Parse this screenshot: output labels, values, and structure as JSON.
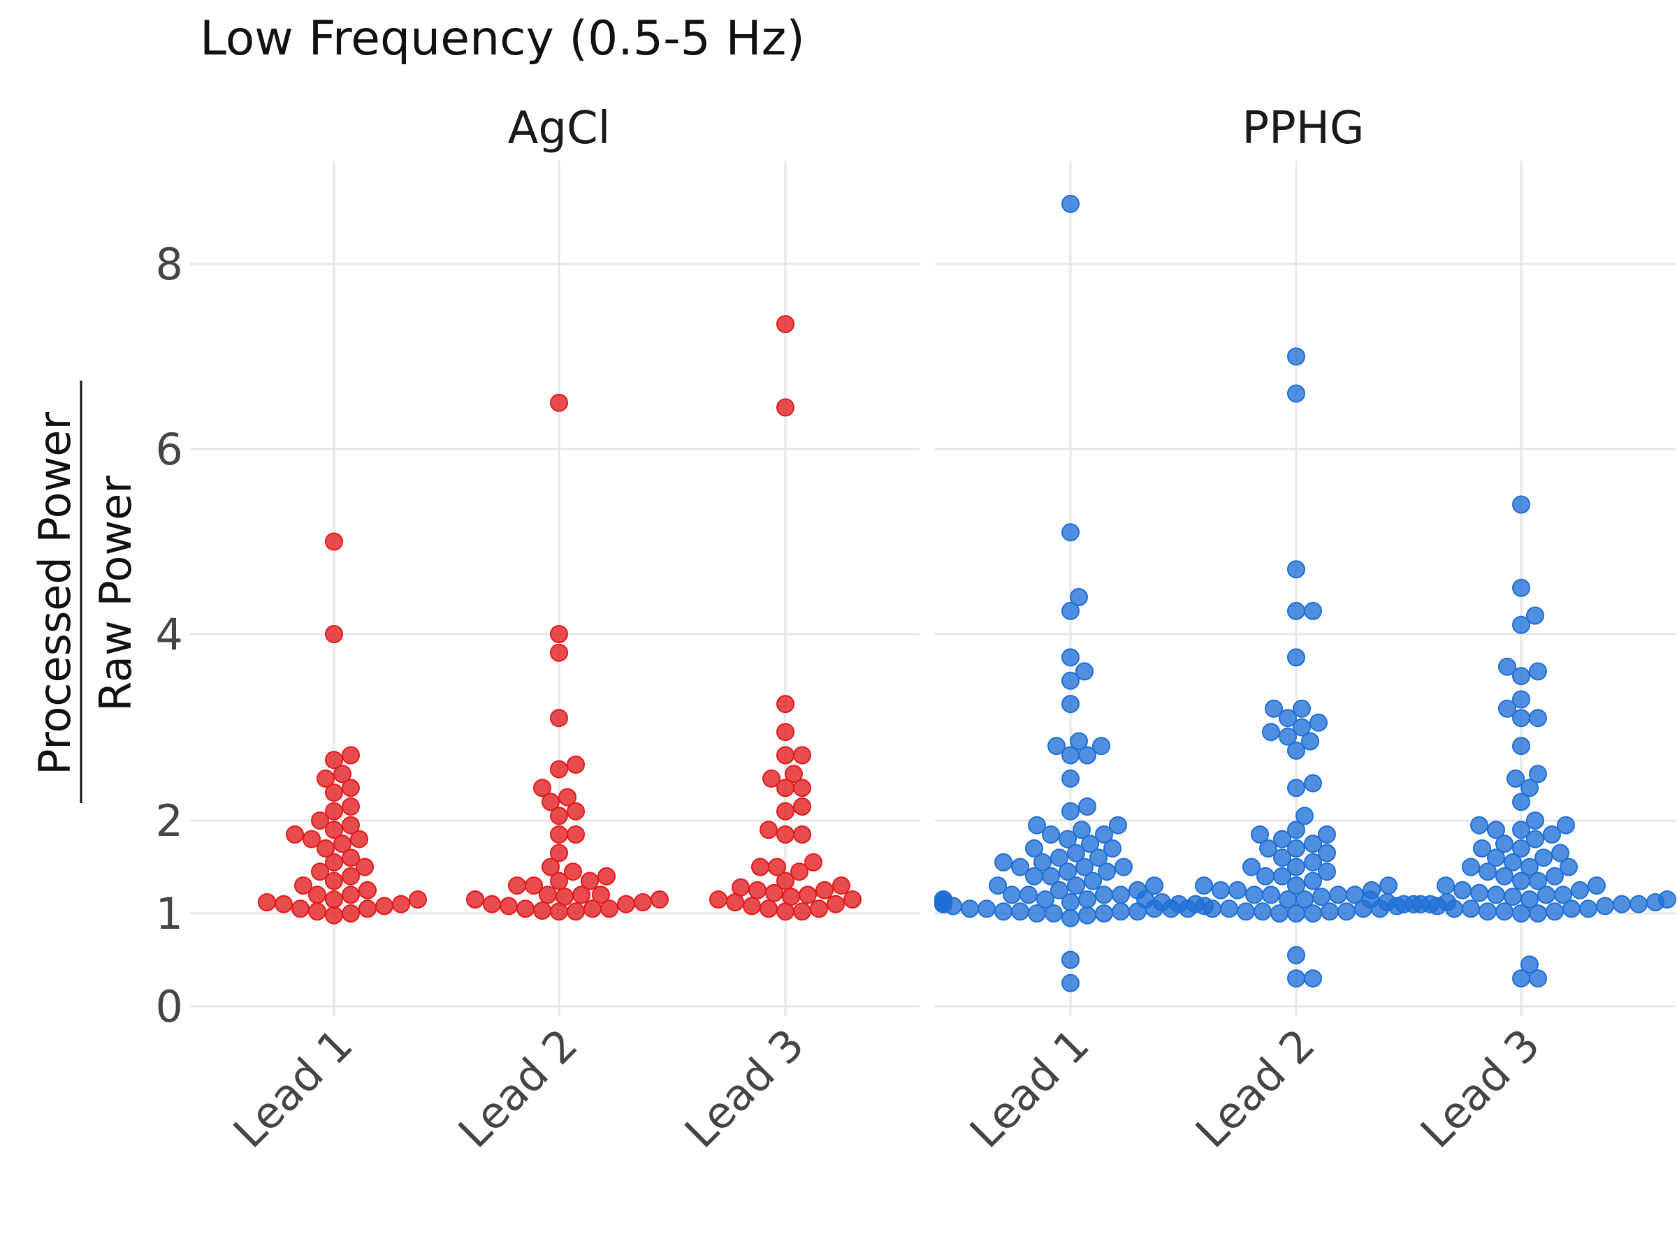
{
  "chart_data": {
    "type": "scatter",
    "subtype": "beeswarm",
    "title": "Low Frequency (0.5-5 Hz)",
    "ylabel_numerator": "Processed Power",
    "ylabel_denominator": "Raw Power",
    "xlabel": "",
    "y_ticks": [
      {
        "value": 0,
        "label": "0"
      },
      {
        "value": 1,
        "label": "1"
      },
      {
        "value": 2,
        "label": "2"
      },
      {
        "value": 4,
        "label": "4"
      },
      {
        "value": 6,
        "label": "6"
      },
      {
        "value": 8,
        "label": "8"
      }
    ],
    "ylim": [
      -0.05,
      8.5
    ],
    "grid": true,
    "categories": [
      "Lead 1",
      "Lead 2",
      "Lead 3"
    ],
    "panels": [
      {
        "name": "AgCl",
        "color": "#e31a1c",
        "series": [
          {
            "category": "Lead 1",
            "values": [
              5.0,
              4.0,
              2.7,
              2.65,
              2.5,
              2.45,
              2.35,
              2.3,
              2.15,
              2.1,
              2.0,
              1.95,
              1.9,
              1.85,
              1.8,
              1.8,
              1.75,
              1.7,
              1.6,
              1.55,
              1.5,
              1.45,
              1.4,
              1.35,
              1.3,
              1.25,
              1.2,
              1.2,
              1.15,
              1.15,
              1.12,
              1.1,
              1.1,
              1.08,
              1.05,
              1.05,
              1.02,
              1.0,
              0.98
            ]
          },
          {
            "category": "Lead 2",
            "values": [
              6.5,
              4.0,
              3.8,
              3.1,
              2.6,
              2.55,
              2.35,
              2.25,
              2.2,
              2.1,
              2.05,
              1.85,
              1.85,
              1.65,
              1.5,
              1.45,
              1.4,
              1.35,
              1.35,
              1.3,
              1.3,
              1.2,
              1.2,
              1.2,
              1.18,
              1.15,
              1.15,
              1.12,
              1.1,
              1.1,
              1.08,
              1.05,
              1.05,
              1.05,
              1.03,
              1.02,
              1.02
            ]
          },
          {
            "category": "Lead 3",
            "values": [
              7.35,
              6.45,
              3.25,
              2.95,
              2.7,
              2.7,
              2.5,
              2.45,
              2.35,
              2.35,
              2.15,
              2.1,
              1.9,
              1.85,
              1.85,
              1.55,
              1.5,
              1.5,
              1.45,
              1.35,
              1.3,
              1.28,
              1.25,
              1.25,
              1.22,
              1.2,
              1.18,
              1.15,
              1.15,
              1.12,
              1.1,
              1.08,
              1.05,
              1.05,
              1.02,
              1.02
            ]
          }
        ]
      },
      {
        "name": "PPHG",
        "color": "#1f6fd6",
        "series": [
          {
            "category": "Lead 1",
            "values": [
              8.65,
              5.1,
              4.4,
              4.25,
              3.75,
              3.6,
              3.5,
              3.25,
              2.85,
              2.8,
              2.8,
              2.7,
              2.7,
              2.45,
              2.15,
              2.1,
              1.95,
              1.95,
              1.9,
              1.85,
              1.85,
              1.8,
              1.75,
              1.7,
              1.7,
              1.65,
              1.6,
              1.6,
              1.55,
              1.55,
              1.5,
              1.5,
              1.5,
              1.45,
              1.45,
              1.4,
              1.4,
              1.35,
              1.3,
              1.3,
              1.3,
              1.25,
              1.25,
              1.2,
              1.2,
              1.2,
              1.2,
              1.15,
              1.15,
              1.15,
              1.15,
              1.12,
              1.12,
              1.1,
              1.1,
              1.1,
              1.1,
              1.08,
              1.08,
              1.05,
              1.05,
              1.05,
              1.05,
              1.05,
              1.02,
              1.02,
              1.02,
              1.02,
              1.0,
              1.0,
              1.0,
              0.98,
              0.95,
              0.5,
              0.25
            ]
          },
          {
            "category": "Lead 2",
            "values": [
              7.0,
              6.6,
              4.7,
              4.25,
              4.25,
              3.75,
              3.2,
              3.2,
              3.1,
              3.05,
              3.0,
              2.95,
              2.9,
              2.85,
              2.75,
              2.4,
              2.35,
              2.05,
              1.9,
              1.85,
              1.85,
              1.8,
              1.75,
              1.7,
              1.7,
              1.65,
              1.6,
              1.55,
              1.5,
              1.5,
              1.45,
              1.4,
              1.4,
              1.35,
              1.3,
              1.3,
              1.3,
              1.25,
              1.25,
              1.25,
              1.2,
              1.2,
              1.2,
              1.2,
              1.18,
              1.15,
              1.15,
              1.15,
              1.12,
              1.12,
              1.1,
              1.1,
              1.1,
              1.1,
              1.08,
              1.05,
              1.05,
              1.05,
              1.05,
              1.02,
              1.02,
              1.02,
              1.02,
              1.0,
              1.0,
              1.0,
              0.55,
              0.3,
              0.3
            ]
          },
          {
            "category": "Lead 3",
            "values": [
              5.4,
              4.5,
              4.2,
              4.1,
              3.65,
              3.6,
              3.55,
              3.3,
              3.2,
              3.1,
              3.1,
              2.8,
              2.5,
              2.45,
              2.35,
              2.2,
              2.0,
              1.95,
              1.95,
              1.9,
              1.9,
              1.85,
              1.8,
              1.75,
              1.7,
              1.7,
              1.65,
              1.6,
              1.6,
              1.55,
              1.5,
              1.5,
              1.5,
              1.45,
              1.4,
              1.4,
              1.35,
              1.35,
              1.3,
              1.3,
              1.25,
              1.25,
              1.22,
              1.2,
              1.2,
              1.2,
              1.18,
              1.15,
              1.15,
              1.15,
              1.12,
              1.12,
              1.1,
              1.1,
              1.1,
              1.1,
              1.08,
              1.08,
              1.05,
              1.05,
              1.05,
              1.05,
              1.02,
              1.02,
              1.02,
              1.0,
              1.0,
              0.45,
              0.3,
              0.3
            ]
          }
        ]
      }
    ]
  }
}
